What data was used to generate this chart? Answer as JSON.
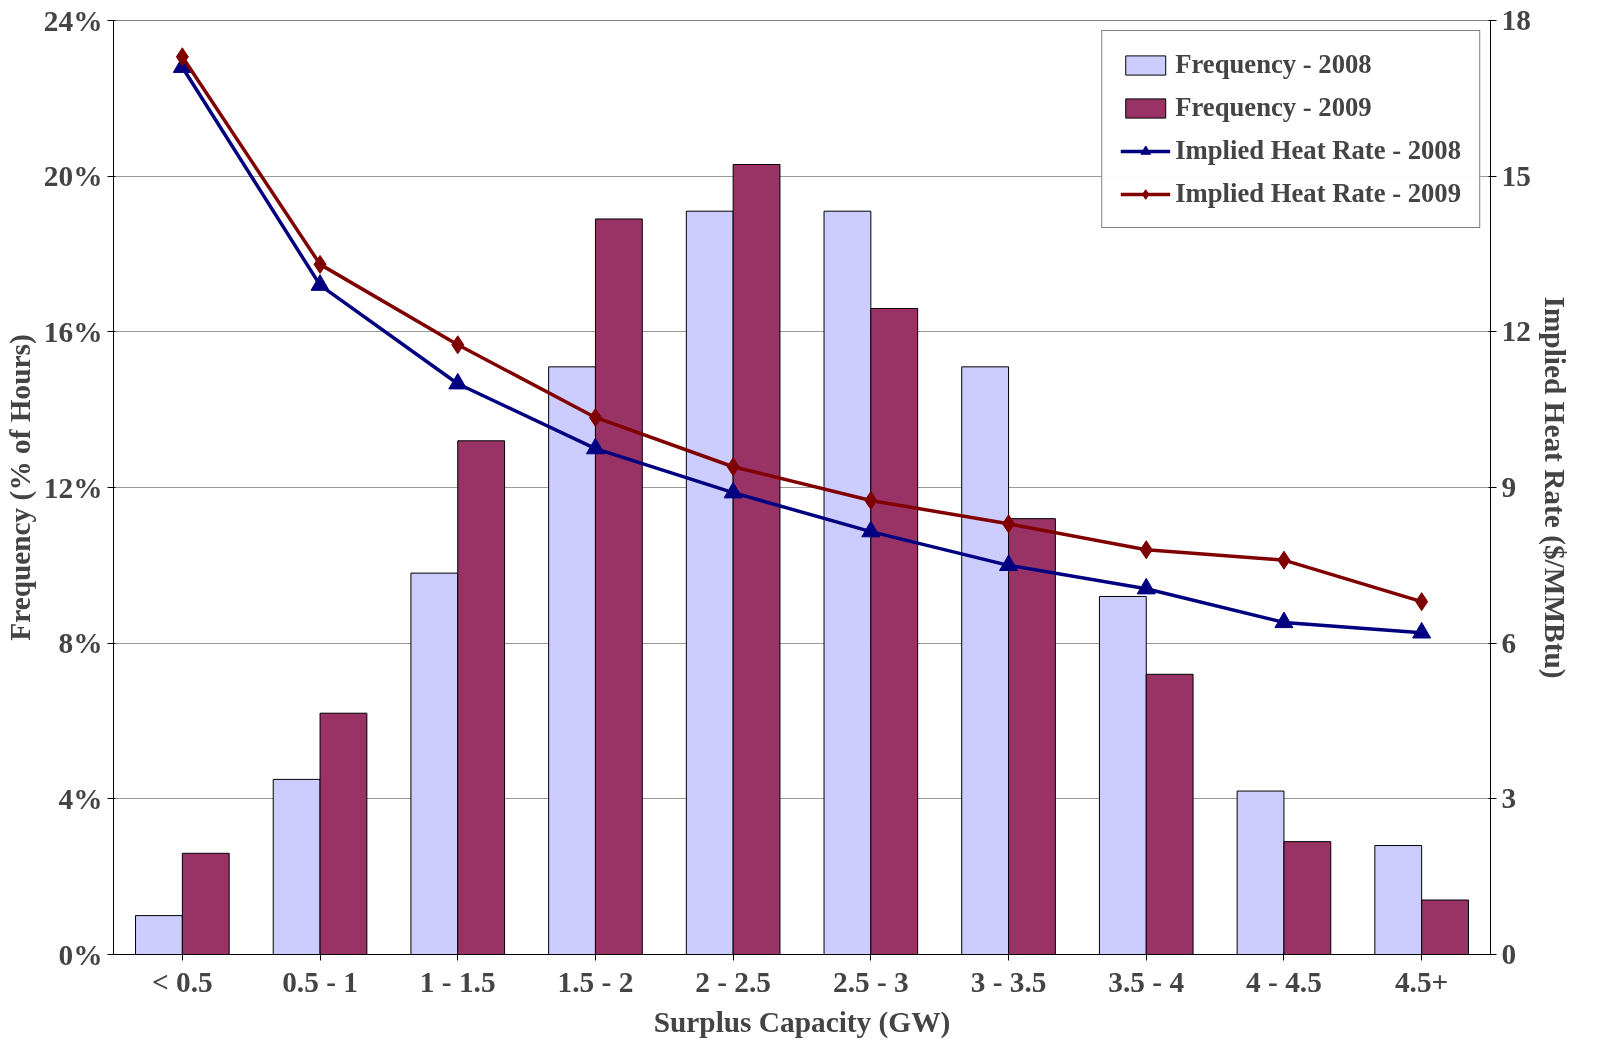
{
  "chart_data": {
    "type": "bar",
    "xlabel": "Surplus Capacity (GW)",
    "ylabel": "Frequency (% of Hours)",
    "y2label": "Implied Heat Rate ($/MMBtu)",
    "categories": [
      "< 0.5",
      "0.5 - 1",
      "1 - 1.5",
      "1.5 - 2",
      "2 - 2.5",
      "2.5 - 3",
      "3 - 3.5",
      "3.5 - 4",
      "4 - 4.5",
      "4.5+"
    ],
    "series": [
      {
        "name": "Frequency - 2008",
        "color": "#ccccff",
        "values": [
          1.0,
          4.5,
          9.8,
          15.1,
          19.1,
          19.1,
          15.1,
          9.2,
          4.2,
          2.8
        ]
      },
      {
        "name": "Frequency - 2009",
        "color": "#993366",
        "values": [
          2.6,
          6.2,
          13.2,
          18.9,
          20.3,
          16.6,
          11.2,
          7.2,
          2.9,
          1.4
        ]
      },
      {
        "name": "Implied Heat Rate - 2008",
        "type": "line",
        "axis": "y2",
        "marker": "triangle",
        "color": "#000080",
        "values": [
          17.1,
          12.9,
          11.0,
          9.75,
          8.9,
          8.15,
          7.5,
          7.05,
          6.4,
          6.2
        ]
      },
      {
        "name": "Implied Heat Rate - 2009",
        "type": "line",
        "axis": "y2",
        "marker": "diamond",
        "color": "#800000",
        "values": [
          17.3,
          13.3,
          11.75,
          10.35,
          9.4,
          8.75,
          8.3,
          7.8,
          7.6,
          6.8
        ]
      }
    ],
    "ylim": [
      0,
      24
    ],
    "yticks": [
      {
        "value": 0,
        "label": "0%"
      },
      {
        "value": 4,
        "label": "4%"
      },
      {
        "value": 8,
        "label": "8%"
      },
      {
        "value": 12,
        "label": "12%"
      },
      {
        "value": 16,
        "label": "16%"
      },
      {
        "value": 20,
        "label": "20%"
      },
      {
        "value": 24,
        "label": "24%"
      }
    ],
    "y2lim": [
      0,
      18
    ],
    "y2ticks": [
      0,
      3,
      6,
      9,
      12,
      15,
      18
    ],
    "grid": "y",
    "legend": "top right"
  }
}
